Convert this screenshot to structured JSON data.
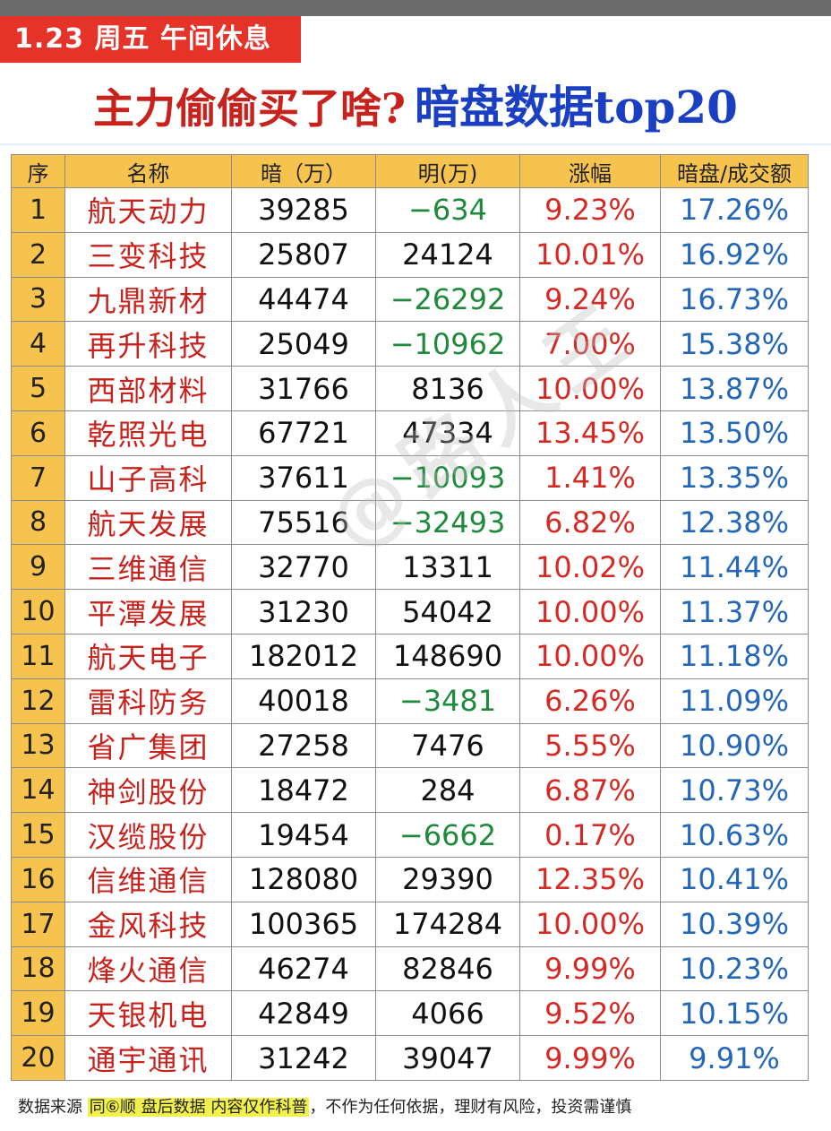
{
  "header": {
    "date_badge": "1.23 周五  午间休息",
    "title_red": "主力偷偷买了啥?",
    "title_blue": "暗盘数据top20"
  },
  "table": {
    "columns": [
      "序",
      "名称",
      "暗（万）",
      "明(万)",
      "涨幅",
      "暗盘/成交额"
    ],
    "rows": [
      {
        "idx": "1",
        "name": "航天动力",
        "an": "39285",
        "ming": "−634",
        "chg": "9.23%",
        "ratio": "17.26%",
        "neg": true
      },
      {
        "idx": "2",
        "name": "三变科技",
        "an": "25807",
        "ming": "24124",
        "chg": "10.01%",
        "ratio": "16.92%",
        "neg": false
      },
      {
        "idx": "3",
        "name": "九鼎新材",
        "an": "44474",
        "ming": "−26292",
        "chg": "9.24%",
        "ratio": "16.73%",
        "neg": true
      },
      {
        "idx": "4",
        "name": "再升科技",
        "an": "25049",
        "ming": "−10962",
        "chg": "7.00%",
        "ratio": "15.38%",
        "neg": true
      },
      {
        "idx": "5",
        "name": "西部材料",
        "an": "31766",
        "ming": "8136",
        "chg": "10.00%",
        "ratio": "13.87%",
        "neg": false
      },
      {
        "idx": "6",
        "name": "乾照光电",
        "an": "67721",
        "ming": "47334",
        "chg": "13.45%",
        "ratio": "13.50%",
        "neg": false
      },
      {
        "idx": "7",
        "name": "山子高科",
        "an": "37611",
        "ming": "−10093",
        "chg": "1.41%",
        "ratio": "13.35%",
        "neg": true
      },
      {
        "idx": "8",
        "name": "航天发展",
        "an": "75516",
        "ming": "−32493",
        "chg": "6.82%",
        "ratio": "12.38%",
        "neg": true
      },
      {
        "idx": "9",
        "name": "三维通信",
        "an": "32770",
        "ming": "13311",
        "chg": "10.02%",
        "ratio": "11.44%",
        "neg": false
      },
      {
        "idx": "10",
        "name": "平潭发展",
        "an": "31230",
        "ming": "54042",
        "chg": "10.00%",
        "ratio": "11.37%",
        "neg": false
      },
      {
        "idx": "11",
        "name": "航天电子",
        "an": "182012",
        "ming": "148690",
        "chg": "10.00%",
        "ratio": "11.18%",
        "neg": false
      },
      {
        "idx": "12",
        "name": "雷科防务",
        "an": "40018",
        "ming": "−3481",
        "chg": "6.26%",
        "ratio": "11.09%",
        "neg": true
      },
      {
        "idx": "13",
        "name": "省广集团",
        "an": "27258",
        "ming": "7476",
        "chg": "5.55%",
        "ratio": "10.90%",
        "neg": false
      },
      {
        "idx": "14",
        "name": "神剑股份",
        "an": "18472",
        "ming": "284",
        "chg": "6.87%",
        "ratio": "10.73%",
        "neg": false
      },
      {
        "idx": "15",
        "name": "汉缆股份",
        "an": "19454",
        "ming": "−6662",
        "chg": "0.17%",
        "ratio": "10.63%",
        "neg": true
      },
      {
        "idx": "16",
        "name": "信维通信",
        "an": "128080",
        "ming": "29390",
        "chg": "12.35%",
        "ratio": "10.41%",
        "neg": false
      },
      {
        "idx": "17",
        "name": "金风科技",
        "an": "100365",
        "ming": "174284",
        "chg": "10.00%",
        "ratio": "10.39%",
        "neg": false
      },
      {
        "idx": "18",
        "name": "烽火通信",
        "an": "46274",
        "ming": "82846",
        "chg": "9.99%",
        "ratio": "10.23%",
        "neg": false
      },
      {
        "idx": "19",
        "name": "天银机电",
        "an": "42849",
        "ming": "4066",
        "chg": "9.52%",
        "ratio": "10.15%",
        "neg": false
      },
      {
        "idx": "20",
        "name": "通宇通讯",
        "an": "31242",
        "ming": "39047",
        "chg": "9.99%",
        "ratio": "9.91%",
        "neg": false
      }
    ]
  },
  "watermark": "@路人王",
  "footer": {
    "prefix": "数据来源 ",
    "hl1": "同⑥顺 盘后数据 内容仅作科普",
    "suffix": "，不作为任何依据，理财有风险，投资需谨慎"
  },
  "colors": {
    "header_yellow": "#f7c34f",
    "name_red": "#c8221d",
    "negative_green": "#208a3c",
    "change_red": "#d42a23",
    "ratio_blue": "#2466b8",
    "badge_red": "#e63329",
    "title_blue": "#1a3fc2"
  }
}
